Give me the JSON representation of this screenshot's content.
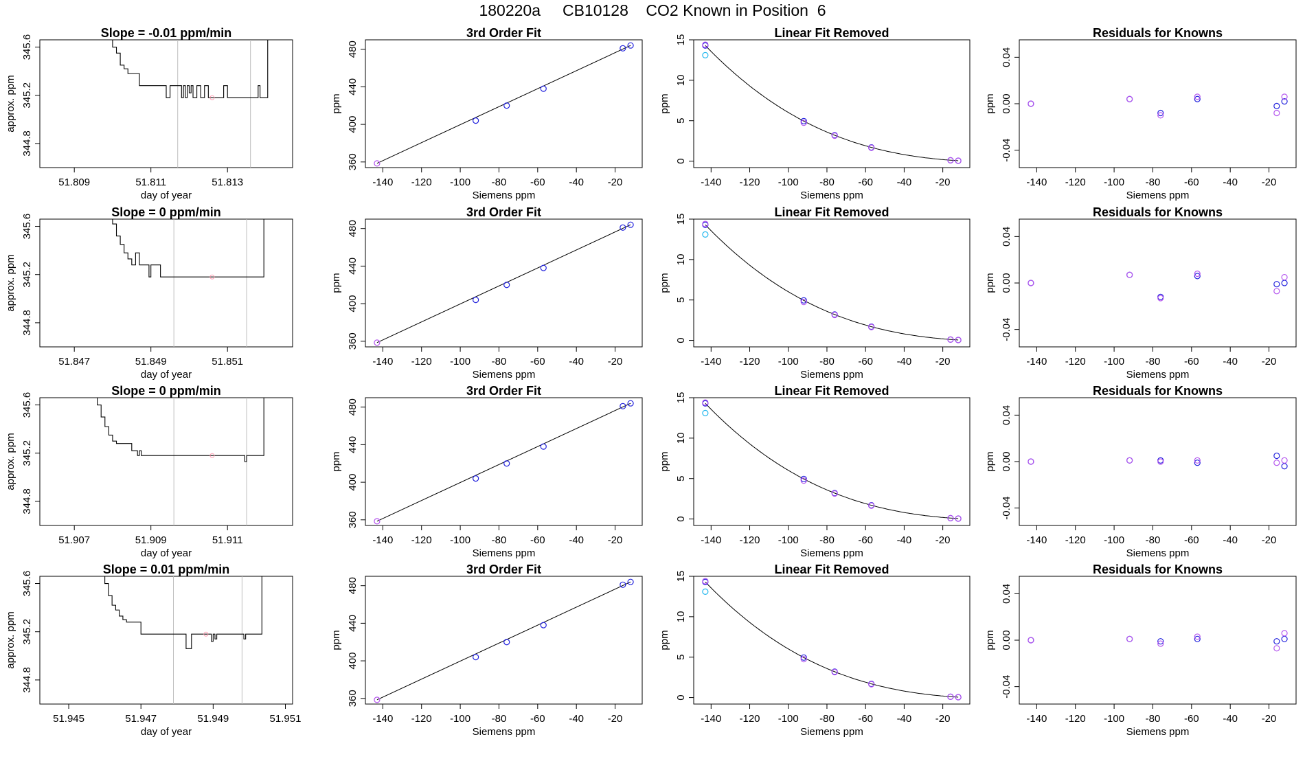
{
  "page_title": "180220a     CB10128    CO2 Known in Position  6",
  "colors": {
    "axis": "#000000",
    "trace": "#000000",
    "vline": "#bebebe",
    "pink": "#ff9fb4",
    "blue": "#2222dd",
    "violet": "#b455ee",
    "cyan": "#22b7ee"
  },
  "chart_data": [
    {
      "row": 0,
      "type": "line",
      "title": "Slope =  -0.01  ppm/min",
      "xlabel": "day of year",
      "ylabel": "approx. ppm",
      "xlim": [
        51.8081,
        51.8147
      ],
      "ylim": [
        344.6,
        345.66
      ],
      "xticks": [
        "51.809",
        "51.811",
        "51.813"
      ],
      "xtick_values": [
        51.809,
        51.811,
        51.813
      ],
      "yticks": [
        "344.8",
        "345.2",
        "345.6"
      ],
      "ytick_values": [
        344.8,
        345.2,
        345.6
      ],
      "vlines": [
        51.8117,
        51.8136
      ],
      "marker": {
        "x": 51.8126,
        "y": 345.18
      },
      "x": [
        51.8099,
        51.81,
        51.8101,
        51.8102,
        51.8103,
        51.8104,
        51.8105,
        51.8106,
        51.8107,
        51.8108,
        51.8109,
        51.811,
        51.81105,
        51.8111,
        51.81125,
        51.8113,
        51.8114,
        51.8115,
        51.8116,
        51.8117,
        51.8118,
        51.81185,
        51.8119,
        51.81195,
        51.812,
        51.81205,
        51.8121,
        51.8122,
        51.8123,
        51.8124,
        51.8125,
        51.8126,
        51.8127,
        51.8128,
        51.8129,
        51.813,
        51.8131,
        51.8132,
        51.8133,
        51.8134,
        51.8135,
        51.8136,
        51.8137,
        51.8138,
        51.81385,
        51.8139,
        51.814,
        51.81405
      ],
      "y": [
        345.7,
        345.6,
        345.55,
        345.45,
        345.42,
        345.38,
        345.38,
        345.38,
        345.28,
        345.28,
        345.28,
        345.28,
        345.28,
        345.28,
        345.28,
        345.28,
        345.18,
        345.28,
        345.28,
        345.28,
        345.18,
        345.28,
        345.18,
        345.28,
        345.22,
        345.28,
        345.18,
        345.28,
        345.18,
        345.28,
        345.18,
        345.18,
        345.18,
        345.18,
        345.28,
        345.18,
        345.18,
        345.18,
        345.18,
        345.18,
        345.18,
        345.18,
        345.18,
        345.28,
        345.18,
        345.18,
        345.18,
        345.7
      ]
    },
    {
      "row": 1,
      "type": "line",
      "title": "Slope =  0  ppm/min",
      "xlabel": "day of year",
      "ylabel": "approx. ppm",
      "xlim": [
        51.8461,
        51.8527
      ],
      "ylim": [
        344.6,
        345.66
      ],
      "xticks": [
        "51.847",
        "51.849",
        "51.851"
      ],
      "xtick_values": [
        51.847,
        51.849,
        51.851
      ],
      "yticks": [
        "344.8",
        "345.2",
        "345.6"
      ],
      "ytick_values": [
        344.8,
        345.2,
        345.6
      ],
      "vlines": [
        51.8496,
        51.8515
      ],
      "marker": {
        "x": 51.8506,
        "y": 345.18
      },
      "x": [
        51.8479,
        51.848,
        51.8481,
        51.8482,
        51.8483,
        51.8484,
        51.8485,
        51.8486,
        51.8487,
        51.8488,
        51.8489,
        51.84895,
        51.849,
        51.8491,
        51.8492,
        51.84925,
        51.8493,
        51.8494,
        51.8495,
        51.85,
        51.8505,
        51.851,
        51.8515,
        51.8519,
        51.85195
      ],
      "y": [
        345.7,
        345.62,
        345.52,
        345.45,
        345.38,
        345.33,
        345.28,
        345.38,
        345.28,
        345.28,
        345.28,
        345.18,
        345.28,
        345.28,
        345.28,
        345.18,
        345.18,
        345.18,
        345.18,
        345.18,
        345.18,
        345.18,
        345.18,
        345.18,
        345.7
      ]
    },
    {
      "row": 2,
      "type": "line",
      "title": "Slope =  0  ppm/min",
      "xlabel": "day of year",
      "ylabel": "approx. ppm",
      "xlim": [
        51.9061,
        51.9127
      ],
      "ylim": [
        344.6,
        345.66
      ],
      "xticks": [
        "51.907",
        "51.909",
        "51.911"
      ],
      "xtick_values": [
        51.907,
        51.909,
        51.911
      ],
      "yticks": [
        "344.8",
        "345.2",
        "345.6"
      ],
      "ytick_values": [
        344.8,
        345.2,
        345.6
      ],
      "vlines": [
        51.9096,
        51.9115
      ],
      "marker": {
        "x": 51.9106,
        "y": 345.18
      },
      "x": [
        51.9075,
        51.9076,
        51.9077,
        51.9078,
        51.9079,
        51.908,
        51.9081,
        51.9082,
        51.9083,
        51.9084,
        51.9085,
        51.9086,
        51.90865,
        51.9087,
        51.90875,
        51.9088,
        51.909,
        51.9095,
        51.91,
        51.9105,
        51.911,
        51.9114,
        51.91145,
        51.9115,
        51.9116,
        51.9118,
        51.9119,
        51.91195
      ],
      "y": [
        345.7,
        345.6,
        345.5,
        345.42,
        345.35,
        345.3,
        345.28,
        345.28,
        345.28,
        345.28,
        345.22,
        345.22,
        345.18,
        345.22,
        345.18,
        345.18,
        345.18,
        345.18,
        345.18,
        345.18,
        345.18,
        345.18,
        345.13,
        345.18,
        345.18,
        345.18,
        345.18,
        345.7
      ]
    },
    {
      "row": 3,
      "type": "line",
      "title": "Slope =  0.01  ppm/min",
      "xlabel": "day of year",
      "ylabel": "approx. ppm",
      "xlim": [
        51.9442,
        51.9512
      ],
      "ylim": [
        344.6,
        345.66
      ],
      "xticks": [
        "51.945",
        "51.947",
        "51.949",
        "51.951"
      ],
      "xtick_values": [
        51.945,
        51.947,
        51.949,
        51.951
      ],
      "yticks": [
        "344.8",
        "345.2",
        "345.6"
      ],
      "ytick_values": [
        344.8,
        345.2,
        345.6
      ],
      "vlines": [
        51.9479,
        51.9498
      ],
      "marker": {
        "x": 51.9488,
        "y": 345.18
      },
      "x": [
        51.9459,
        51.946,
        51.9461,
        51.9462,
        51.9463,
        51.9464,
        51.9465,
        51.9466,
        51.9467,
        51.9468,
        51.9469,
        51.947,
        51.9475,
        51.948,
        51.9482,
        51.94825,
        51.9483,
        51.9484,
        51.9486,
        51.9489,
        51.94895,
        51.949,
        51.94905,
        51.9491,
        51.9494,
        51.9497,
        51.9498,
        51.94985,
        51.9499,
        51.9502,
        51.9503,
        51.95035
      ],
      "y": [
        345.7,
        345.6,
        345.5,
        345.42,
        345.38,
        345.33,
        345.3,
        345.28,
        345.28,
        345.28,
        345.28,
        345.18,
        345.18,
        345.18,
        345.18,
        345.06,
        345.06,
        345.18,
        345.18,
        345.18,
        345.12,
        345.18,
        345.14,
        345.18,
        345.18,
        345.18,
        345.18,
        345.14,
        345.18,
        345.18,
        345.18,
        345.7
      ]
    }
  ],
  "fit_panels": [
    {
      "title": "3rd Order Fit",
      "xlabel": "Siemens ppm",
      "ylabel": "ppm",
      "xlim": [
        -149,
        -6
      ],
      "ylim": [
        354,
        490
      ],
      "xticks": [
        "-140",
        "-120",
        "-100",
        "-80",
        "-60",
        "-40",
        "-20"
      ],
      "xtick_values": [
        -140,
        -120,
        -100,
        -80,
        -60,
        -40,
        -20
      ],
      "yticks": [
        "360",
        "400",
        "440",
        "480"
      ],
      "ytick_values": [
        360,
        400,
        440,
        480
      ],
      "points_x": [
        -143,
        -92,
        -76,
        -57,
        -16,
        -12
      ],
      "points_y": [
        358.5,
        404,
        420,
        438,
        481,
        484
      ]
    },
    {
      "title": "Linear Fit Removed",
      "xlabel": "Siemens ppm",
      "ylabel": "ppm",
      "xlim": [
        -149,
        -6
      ],
      "ylim": [
        -0.8,
        15
      ],
      "xticks": [
        "-140",
        "-120",
        "-100",
        "-80",
        "-60",
        "-40",
        "-20"
      ],
      "xtick_values": [
        -140,
        -120,
        -100,
        -80,
        -60,
        -40,
        -20
      ],
      "yticks": [
        "0",
        "5",
        "10",
        "15"
      ],
      "ytick_values": [
        0,
        5,
        10,
        15
      ],
      "points_x": [
        -143,
        -92,
        -76,
        -57,
        -16,
        -12
      ],
      "points_y": [
        14.3,
        4.95,
        3.2,
        1.7,
        0.1,
        0.05
      ],
      "points_y2": [
        14.4,
        4.75,
        3.15,
        1.65,
        0.1,
        0.05
      ],
      "cyan_point": [
        -143,
        13.1
      ]
    },
    {
      "title": "Residuals for Knowns",
      "xlabel": "Siemens ppm",
      "ylabel": "ppm",
      "xlim": [
        -149,
        -6
      ],
      "ylim": [
        -0.055,
        0.055
      ],
      "xticks": [
        "-140",
        "-120",
        "-100",
        "-80",
        "-60",
        "-40",
        "-20"
      ],
      "xtick_values": [
        -140,
        -120,
        -100,
        -80,
        -60,
        -40,
        -20
      ],
      "yticks": [
        "-0.04",
        "0.00",
        "0.04"
      ],
      "ytick_values": [
        -0.04,
        0,
        0.04
      ],
      "points_x": [
        -143,
        -92,
        -76,
        -57,
        -16,
        -12
      ],
      "rows_blue": [
        [
          0,
          0.004,
          -0.008,
          0.004,
          -0.002,
          0.002
        ],
        [
          0,
          0.007,
          -0.012,
          0.006,
          -0.001,
          0.0
        ],
        [
          0,
          0.001,
          0.001,
          -0.001,
          0.005,
          -0.004
        ],
        [
          0,
          0.001,
          -0.001,
          0.001,
          -0.001,
          0.001
        ]
      ],
      "rows_violet": [
        [
          0,
          0.004,
          -0.01,
          0.006,
          -0.008,
          0.006
        ],
        [
          0,
          0.007,
          -0.013,
          0.008,
          -0.007,
          0.005
        ],
        [
          0,
          0.001,
          0.0,
          0.001,
          -0.001,
          0.001
        ],
        [
          0,
          0.001,
          -0.003,
          0.003,
          -0.007,
          0.006
        ]
      ]
    }
  ]
}
